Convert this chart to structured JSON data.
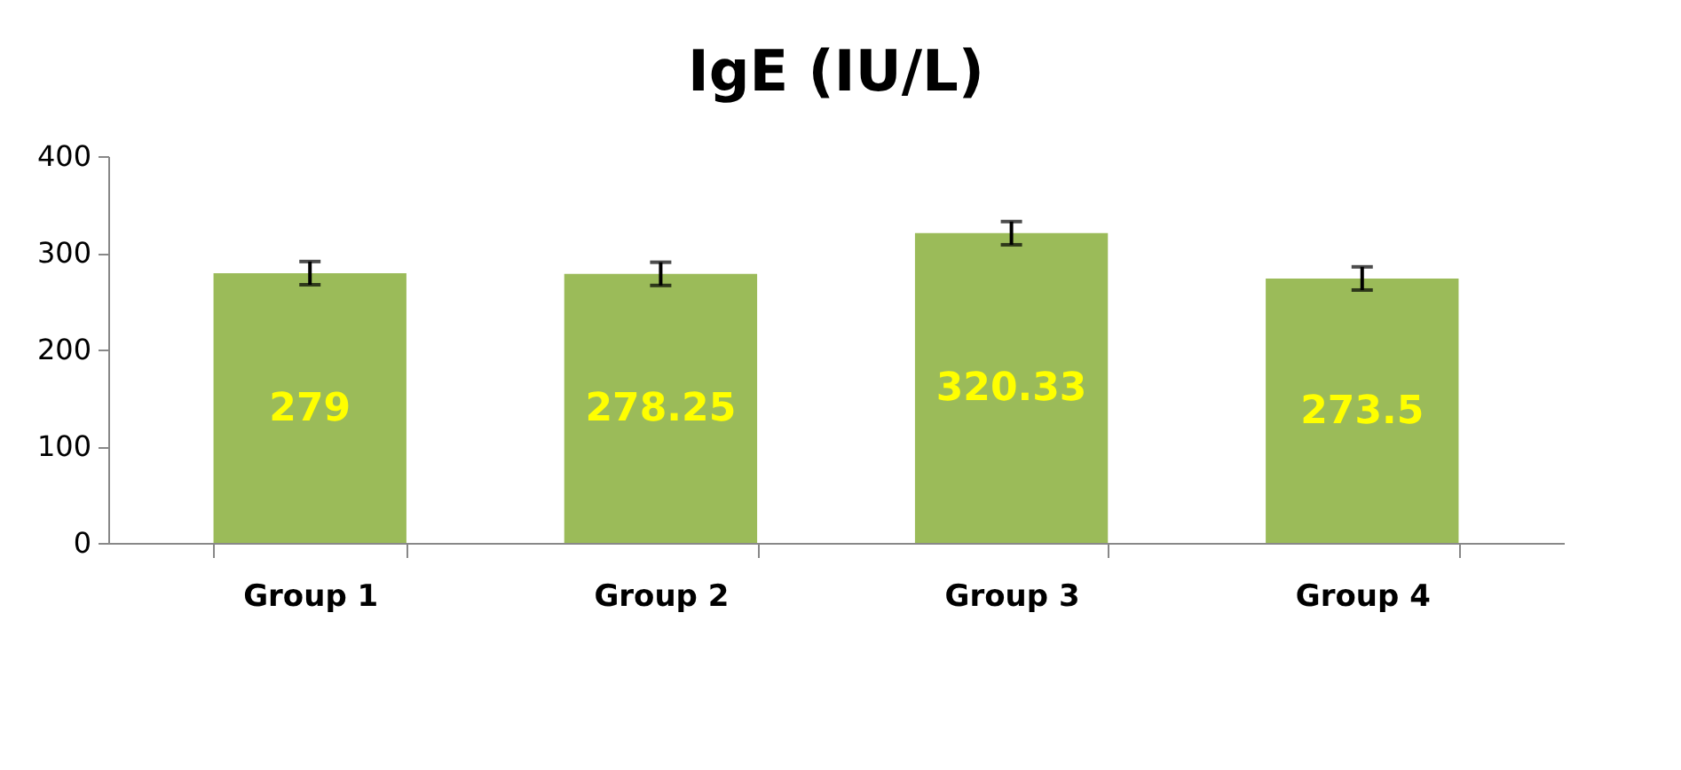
{
  "chart_data": {
    "type": "bar",
    "title": "IgE (IU/L)",
    "categories": [
      "Group 1",
      "Group 2",
      "Group 3",
      "Group 4"
    ],
    "values": [
      279,
      278.25,
      320.33,
      273.5
    ],
    "errors": [
      12,
      12,
      12,
      12
    ],
    "color": "#9bbb59",
    "value_labels": [
      "279",
      "278.25",
      "320.33",
      "273.5"
    ],
    "ylim": [
      0,
      400
    ],
    "yticks": [
      0,
      100,
      200,
      300,
      400
    ],
    "grid": false
  }
}
